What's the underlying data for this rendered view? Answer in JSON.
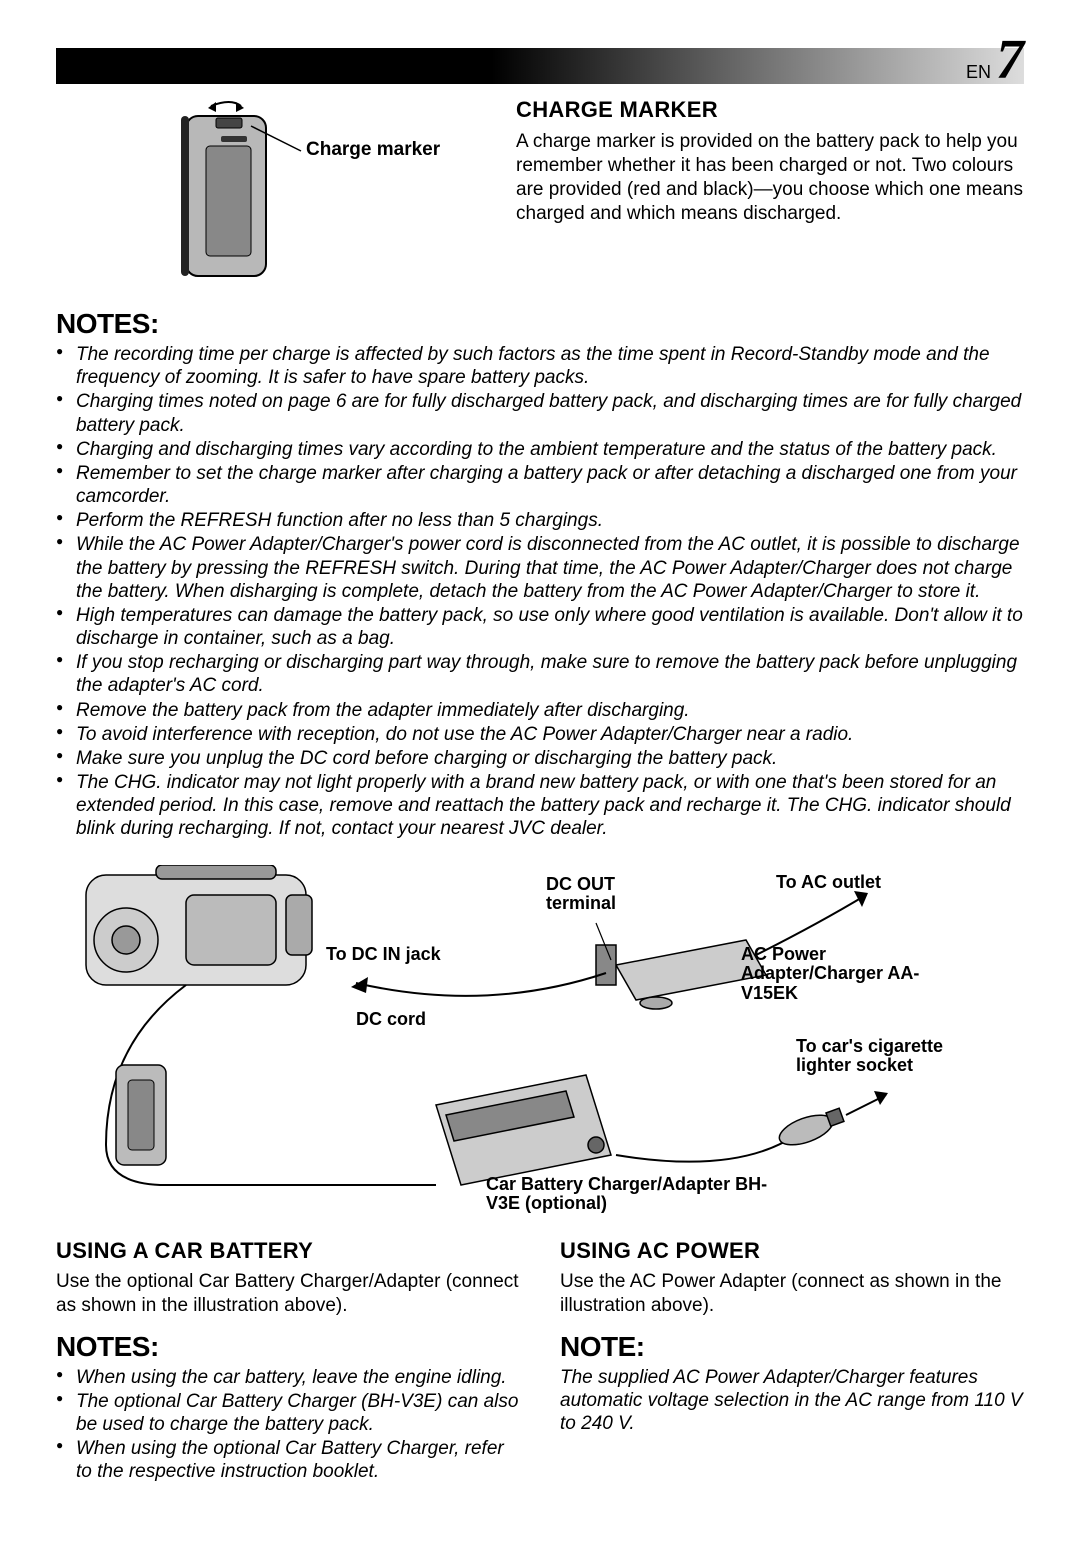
{
  "page": {
    "lang": "EN",
    "number": "7"
  },
  "charge_marker": {
    "callout": "Charge marker",
    "heading": "CHARGE MARKER",
    "body": "A charge marker is provided on the battery pack to help you remember whether it has been charged or not. Two colours are provided (red and black)—you choose which one means charged and which means discharged."
  },
  "notes_main": {
    "heading": "NOTES:",
    "items": [
      "The recording time per charge is affected by such factors as the time spent in Record-Standby mode and the frequency of zooming. It is safer to have spare battery packs.",
      "Charging times noted on page 6 are for fully discharged battery pack, and discharging times are for fully charged battery pack.",
      "Charging and discharging times vary according to the ambient temperature and the status of the battery pack.",
      "Remember to set the charge marker after charging a battery pack or after detaching a discharged one from your camcorder.",
      "Perform the REFRESH function after no less than 5 chargings.",
      "While the AC Power Adapter/Charger's power cord is disconnected from the AC outlet, it is possible to discharge the battery by pressing the REFRESH switch. During that time, the AC Power Adapter/Charger does not charge the battery. When disharging is complete, detach the battery from the AC Power Adapter/Charger to store it.",
      "High temperatures can damage the battery pack, so use only where good ventilation is available. Don't allow it to discharge in container, such as a bag.",
      "If you stop recharging or discharging part way through, make sure to remove the battery pack before unplugging the adapter's AC cord.",
      "Remove the battery pack from the adapter immediately after discharging.",
      "To avoid interference with reception, do not use the AC Power Adapter/Charger near a radio.",
      "Make sure you unplug the DC cord before charging or discharging the battery pack.",
      "The CHG. indicator may not light properly with a brand new battery pack, or with one that's been stored for an extended period. In this case, remove and reattach the battery pack and recharge it. The CHG. indicator should blink during recharging. If not, contact your nearest JVC dealer."
    ]
  },
  "diagram": {
    "dc_out": "DC OUT terminal",
    "to_ac": "To AC outlet",
    "to_dc_in": "To DC IN jack",
    "ac_adapter": "AC Power Adapter/Charger AA-V15EK",
    "dc_cord": "DC cord",
    "to_car": "To car's cigarette lighter socket",
    "car_charger": "Car Battery Charger/Adapter BH-V3E (optional)"
  },
  "car_battery": {
    "heading": "USING A CAR BATTERY",
    "body": "Use the optional Car Battery Charger/Adapter (connect as shown in the illustration above).",
    "notes_heading": "NOTES:",
    "items": [
      "When using the car battery, leave the engine idling.",
      "The optional Car Battery Charger (BH-V3E) can also be used to charge the battery pack.",
      "When using the optional Car Battery Charger, refer to the respective instruction booklet."
    ]
  },
  "ac_power": {
    "heading": "USING AC POWER",
    "body": "Use the AC Power Adapter (connect as shown in the illustration above).",
    "note_heading": "NOTE:",
    "note_body": "The supplied AC Power Adapter/Charger features automatic voltage selection in the AC range from 110 V to 240 V."
  },
  "style": {
    "gradient_start": "#000000",
    "gradient_end": "#dddddd",
    "text_color": "#000000",
    "background": "#ffffff",
    "tab_gray": "#bfbfbf"
  }
}
